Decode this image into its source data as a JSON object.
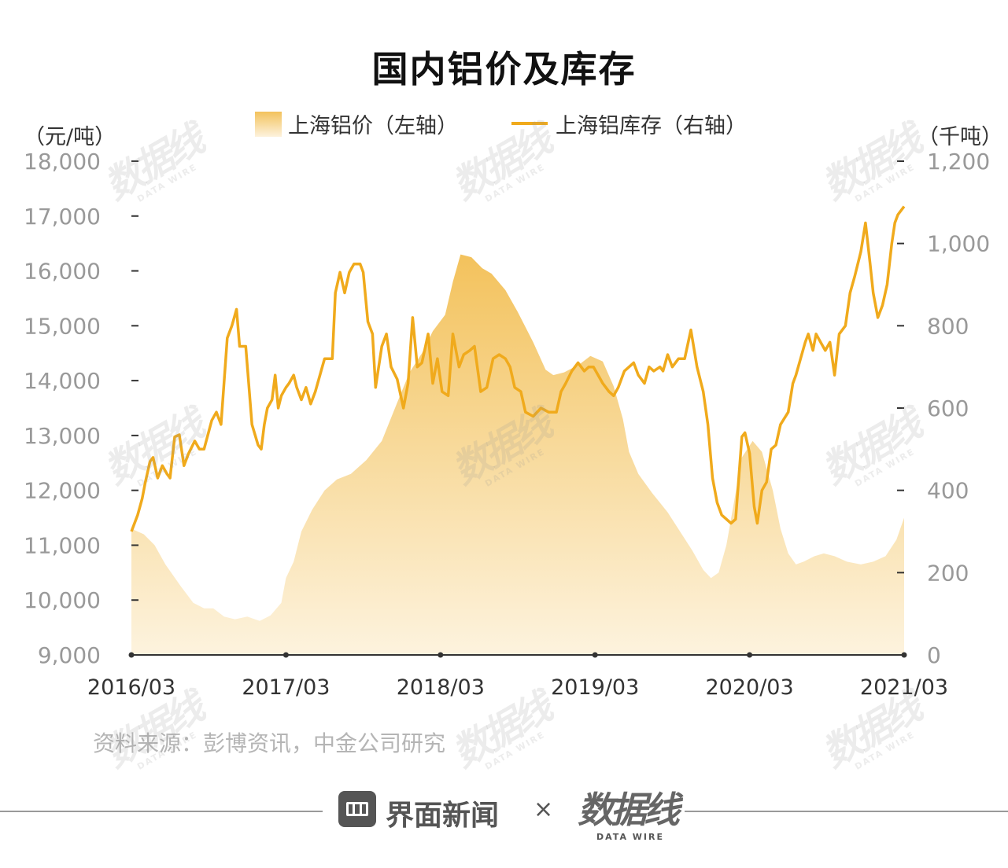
{
  "title": "国内铝价及库存",
  "legend": {
    "area_label": "上海铝价（左轴）",
    "line_label": "上海铝库存（右轴）"
  },
  "units": {
    "left": "（元/吨）",
    "right": "（千吨）"
  },
  "source": "资料来源：彭博资讯，中金公司研究",
  "footer": {
    "brand": "界面新闻",
    "separator": "×",
    "logo": "数据线",
    "logo_sub": "DATA WIRE"
  },
  "watermark": {
    "text": "数据线",
    "sub": "DATA WIRE"
  },
  "colors": {
    "area_top": "#f3c25c",
    "area_bottom": "#fdf3de",
    "line": "#f0aa1c",
    "axis": "#333333",
    "tick_label": "#999999"
  },
  "chart_data": {
    "type": "area+line",
    "title": "国内铝价及库存",
    "x_tick_labels": [
      "2016/03",
      "2017/03",
      "2018/03",
      "2019/03",
      "2020/03",
      "2021/03"
    ],
    "x_range": [
      2016.0,
      2021.0
    ],
    "y_left": {
      "label": "（元/吨）",
      "range": [
        9000,
        18000
      ],
      "ticks": [
        9000,
        10000,
        11000,
        12000,
        13000,
        14000,
        15000,
        16000,
        17000,
        18000
      ],
      "tick_labels": [
        "9,000",
        "10,000",
        "11,000",
        "12,000",
        "13,000",
        "14,000",
        "15,000",
        "16,000",
        "17,000",
        "18,000"
      ]
    },
    "y_right": {
      "label": "（千吨）",
      "range": [
        0,
        1200
      ],
      "ticks": [
        0,
        200,
        400,
        600,
        800,
        1000,
        1200
      ],
      "tick_labels": [
        "0",
        "200",
        "400",
        "600",
        "800",
        "1,000",
        "1,200"
      ]
    },
    "series": [
      {
        "name": "上海铝价（左轴）",
        "type": "area",
        "axis": "left",
        "points": [
          [
            2016.0,
            11300
          ],
          [
            2016.08,
            11200
          ],
          [
            2016.15,
            11000
          ],
          [
            2016.22,
            10650
          ],
          [
            2016.32,
            10250
          ],
          [
            2016.4,
            9950
          ],
          [
            2016.47,
            9850
          ],
          [
            2016.53,
            9850
          ],
          [
            2016.6,
            9700
          ],
          [
            2016.67,
            9650
          ],
          [
            2016.75,
            9700
          ],
          [
            2016.83,
            9620
          ],
          [
            2016.9,
            9720
          ],
          [
            2016.97,
            9950
          ],
          [
            2017.0,
            10400
          ],
          [
            2017.05,
            10700
          ],
          [
            2017.1,
            11250
          ],
          [
            2017.17,
            11650
          ],
          [
            2017.25,
            12000
          ],
          [
            2017.33,
            12200
          ],
          [
            2017.42,
            12300
          ],
          [
            2017.52,
            12550
          ],
          [
            2017.62,
            12900
          ],
          [
            2017.72,
            13600
          ],
          [
            2017.8,
            14150
          ],
          [
            2017.88,
            14500
          ],
          [
            2017.95,
            14900
          ],
          [
            2018.03,
            15200
          ],
          [
            2018.08,
            15800
          ],
          [
            2018.13,
            16300
          ],
          [
            2018.2,
            16250
          ],
          [
            2018.27,
            16050
          ],
          [
            2018.33,
            15950
          ],
          [
            2018.42,
            15650
          ],
          [
            2018.5,
            15250
          ],
          [
            2018.6,
            14700
          ],
          [
            2018.68,
            14200
          ],
          [
            2018.73,
            14100
          ],
          [
            2018.8,
            14150
          ],
          [
            2018.9,
            14300
          ],
          [
            2018.97,
            14450
          ],
          [
            2019.05,
            14350
          ],
          [
            2019.12,
            13900
          ],
          [
            2019.18,
            13300
          ],
          [
            2019.22,
            12700
          ],
          [
            2019.28,
            12300
          ],
          [
            2019.37,
            11950
          ],
          [
            2019.47,
            11600
          ],
          [
            2019.55,
            11250
          ],
          [
            2019.63,
            10900
          ],
          [
            2019.7,
            10550
          ],
          [
            2019.75,
            10400
          ],
          [
            2019.8,
            10500
          ],
          [
            2019.85,
            11000
          ],
          [
            2019.9,
            11800
          ],
          [
            2019.95,
            12600
          ],
          [
            2020.02,
            12900
          ],
          [
            2020.08,
            12700
          ],
          [
            2020.15,
            12000
          ],
          [
            2020.2,
            11300
          ],
          [
            2020.25,
            10850
          ],
          [
            2020.3,
            10650
          ],
          [
            2020.35,
            10700
          ],
          [
            2020.42,
            10800
          ],
          [
            2020.48,
            10850
          ],
          [
            2020.55,
            10800
          ],
          [
            2020.63,
            10700
          ],
          [
            2020.72,
            10650
          ],
          [
            2020.8,
            10700
          ],
          [
            2020.88,
            10800
          ],
          [
            2020.95,
            11100
          ],
          [
            2021.0,
            11500
          ]
        ]
      },
      {
        "name": "上海铝库存（右轴）",
        "type": "line",
        "axis": "right",
        "points": [
          [
            2016.0,
            300
          ],
          [
            2016.04,
            340
          ],
          [
            2016.07,
            380
          ],
          [
            2016.09,
            420
          ],
          [
            2016.12,
            470
          ],
          [
            2016.14,
            480
          ],
          [
            2016.17,
            430
          ],
          [
            2016.2,
            460
          ],
          [
            2016.23,
            440
          ],
          [
            2016.25,
            430
          ],
          [
            2016.28,
            530
          ],
          [
            2016.31,
            535
          ],
          [
            2016.34,
            460
          ],
          [
            2016.37,
            490
          ],
          [
            2016.41,
            520
          ],
          [
            2016.44,
            500
          ],
          [
            2016.47,
            500
          ],
          [
            2016.52,
            570
          ],
          [
            2016.55,
            590
          ],
          [
            2016.58,
            560
          ],
          [
            2016.62,
            770
          ],
          [
            2016.65,
            800
          ],
          [
            2016.68,
            840
          ],
          [
            2016.7,
            750
          ],
          [
            2016.74,
            750
          ],
          [
            2016.78,
            560
          ],
          [
            2016.82,
            510
          ],
          [
            2016.84,
            500
          ],
          [
            2016.86,
            560
          ],
          [
            2016.88,
            600
          ],
          [
            2016.91,
            620
          ],
          [
            2016.93,
            680
          ],
          [
            2016.95,
            600
          ],
          [
            2016.97,
            630
          ],
          [
            2017.0,
            650
          ],
          [
            2017.02,
            660
          ],
          [
            2017.05,
            680
          ],
          [
            2017.07,
            650
          ],
          [
            2017.1,
            620
          ],
          [
            2017.13,
            650
          ],
          [
            2017.16,
            610
          ],
          [
            2017.19,
            640
          ],
          [
            2017.22,
            680
          ],
          [
            2017.25,
            720
          ],
          [
            2017.3,
            720
          ],
          [
            2017.32,
            880
          ],
          [
            2017.35,
            930
          ],
          [
            2017.38,
            880
          ],
          [
            2017.41,
            930
          ],
          [
            2017.44,
            950
          ],
          [
            2017.48,
            950
          ],
          [
            2017.5,
            930
          ],
          [
            2017.53,
            810
          ],
          [
            2017.56,
            780
          ],
          [
            2017.58,
            650
          ],
          [
            2017.62,
            750
          ],
          [
            2017.65,
            780
          ],
          [
            2017.68,
            700
          ],
          [
            2017.72,
            670
          ],
          [
            2017.76,
            600
          ],
          [
            2017.79,
            660
          ],
          [
            2017.82,
            820
          ],
          [
            2017.85,
            700
          ],
          [
            2017.88,
            710
          ],
          [
            2017.92,
            780
          ],
          [
            2017.95,
            660
          ],
          [
            2017.98,
            720
          ],
          [
            2018.01,
            640
          ],
          [
            2018.05,
            630
          ],
          [
            2018.08,
            780
          ],
          [
            2018.12,
            700
          ],
          [
            2018.15,
            730
          ],
          [
            2018.19,
            740
          ],
          [
            2018.22,
            750
          ],
          [
            2018.26,
            640
          ],
          [
            2018.3,
            650
          ],
          [
            2018.34,
            720
          ],
          [
            2018.38,
            730
          ],
          [
            2018.42,
            720
          ],
          [
            2018.45,
            700
          ],
          [
            2018.48,
            650
          ],
          [
            2018.52,
            640
          ],
          [
            2018.55,
            590
          ],
          [
            2018.6,
            580
          ],
          [
            2018.65,
            600
          ],
          [
            2018.7,
            590
          ],
          [
            2018.75,
            590
          ],
          [
            2018.78,
            640
          ],
          [
            2018.81,
            660
          ],
          [
            2018.85,
            690
          ],
          [
            2018.89,
            710
          ],
          [
            2018.93,
            690
          ],
          [
            2018.96,
            700
          ],
          [
            2018.99,
            700
          ],
          [
            2019.02,
            680
          ],
          [
            2019.05,
            660
          ],
          [
            2019.09,
            640
          ],
          [
            2019.12,
            630
          ],
          [
            2019.15,
            650
          ],
          [
            2019.19,
            690
          ],
          [
            2019.22,
            700
          ],
          [
            2019.25,
            710
          ],
          [
            2019.28,
            680
          ],
          [
            2019.32,
            660
          ],
          [
            2019.35,
            700
          ],
          [
            2019.38,
            690
          ],
          [
            2019.42,
            700
          ],
          [
            2019.44,
            690
          ],
          [
            2019.47,
            730
          ],
          [
            2019.5,
            700
          ],
          [
            2019.54,
            720
          ],
          [
            2019.58,
            720
          ],
          [
            2019.62,
            790
          ],
          [
            2019.66,
            700
          ],
          [
            2019.7,
            640
          ],
          [
            2019.73,
            560
          ],
          [
            2019.76,
            430
          ],
          [
            2019.79,
            370
          ],
          [
            2019.82,
            340
          ],
          [
            2019.85,
            330
          ],
          [
            2019.88,
            320
          ],
          [
            2019.91,
            330
          ],
          [
            2019.95,
            530
          ],
          [
            2019.97,
            540
          ],
          [
            2020.0,
            490
          ],
          [
            2020.03,
            360
          ],
          [
            2020.05,
            320
          ],
          [
            2020.08,
            400
          ],
          [
            2020.11,
            420
          ],
          [
            2020.14,
            500
          ],
          [
            2020.17,
            510
          ],
          [
            2020.2,
            560
          ],
          [
            2020.25,
            590
          ],
          [
            2020.28,
            660
          ],
          [
            2020.3,
            680
          ],
          [
            2020.33,
            720
          ],
          [
            2020.36,
            760
          ],
          [
            2020.38,
            780
          ],
          [
            2020.41,
            740
          ],
          [
            2020.43,
            780
          ],
          [
            2020.46,
            760
          ],
          [
            2020.49,
            740
          ],
          [
            2020.52,
            760
          ],
          [
            2020.55,
            680
          ],
          [
            2020.58,
            780
          ],
          [
            2020.62,
            800
          ],
          [
            2020.65,
            880
          ],
          [
            2020.68,
            920
          ],
          [
            2020.72,
            980
          ],
          [
            2020.75,
            1050
          ],
          [
            2020.78,
            950
          ],
          [
            2020.8,
            880
          ],
          [
            2020.83,
            820
          ],
          [
            2020.86,
            850
          ],
          [
            2020.89,
            900
          ],
          [
            2020.92,
            1000
          ],
          [
            2020.94,
            1050
          ],
          [
            2020.96,
            1070
          ],
          [
            2021.0,
            1090
          ]
        ]
      }
    ],
    "grid": false,
    "legend_position": "top-center"
  }
}
